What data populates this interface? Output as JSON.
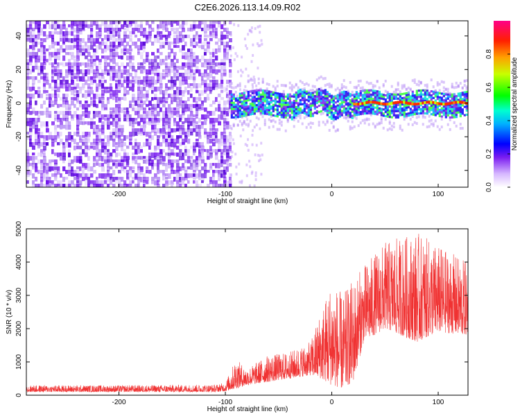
{
  "figure_title": "C2E6.2026.113.14.09.R02",
  "chart_data": [
    {
      "type": "heatmap",
      "xlabel": "Height of straight line (km)",
      "ylabel": "Frequency (Hz)",
      "xlim": [
        -287,
        128
      ],
      "ylim": [
        -50,
        49
      ],
      "xticks": [
        -200,
        -100,
        0,
        100
      ],
      "yticks": [
        -40,
        -20,
        0,
        20,
        40
      ],
      "colorbar": {
        "label": "Normalized spectral amplitude",
        "range": [
          0,
          1
        ],
        "ticks": [
          0.0,
          0.2,
          0.4,
          0.6,
          0.8
        ],
        "tick_labels": [
          "0.0",
          "0.2",
          "0.4",
          "0.6",
          "0.8"
        ]
      },
      "regions": [
        {
          "x_range": [
            -287,
            -95
          ],
          "freq_range": [
            -50,
            49
          ],
          "amplitude": "low (0.0-0.2)"
        },
        {
          "x_range": [
            -95,
            128
          ],
          "freq_range": [
            -7,
            7
          ],
          "amplitude": "0.1-0.5"
        },
        {
          "x_range": [
            20,
            128
          ],
          "freq_range": [
            -1,
            1
          ],
          "amplitude": "0.8-1.0"
        }
      ]
    },
    {
      "type": "line",
      "xlabel": "Height of straight line (km)",
      "ylabel": "SNR (10 * v/v)",
      "xlim": [
        -287,
        128
      ],
      "ylim": [
        0,
        5000
      ],
      "xticks": [
        -200,
        -100,
        0,
        100
      ],
      "yticks": [
        0,
        1000,
        2000,
        3000,
        4000,
        5000
      ],
      "color": "#f03232",
      "envelope": {
        "x": [
          -287,
          -200,
          -110,
          -100,
          -90,
          -80,
          -60,
          -40,
          -20,
          -10,
          0,
          10,
          20,
          30,
          50,
          80,
          100,
          128
        ],
        "low": [
          100,
          100,
          100,
          120,
          200,
          300,
          400,
          500,
          600,
          500,
          300,
          200,
          400,
          1600,
          2000,
          1600,
          1900,
          1800
        ],
        "high": [
          300,
          300,
          320,
          380,
          1100,
          800,
          1200,
          1300,
          1600,
          2600,
          3500,
          3000,
          3500,
          3900,
          4600,
          4900,
          4500,
          4000
        ]
      }
    }
  ]
}
